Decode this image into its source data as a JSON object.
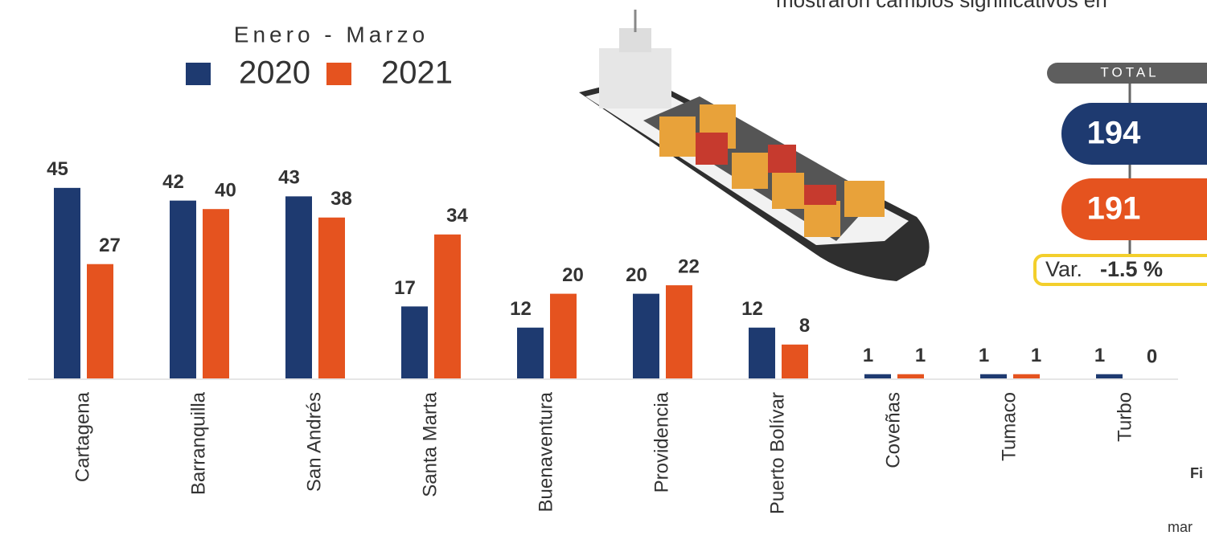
{
  "chart_data": {
    "type": "bar",
    "legend_title": "Enero - Marzo",
    "categories": [
      "Cartagena",
      "Barranquilla",
      "San Andrés",
      "Santa Marta",
      "Buenaventura",
      "Providencia",
      "Puerto Bolívar",
      "Coveñas",
      "Tumaco",
      "Turbo"
    ],
    "series": [
      {
        "name": "2020",
        "color": "#1e3a70",
        "values": [
          45,
          42,
          43,
          17,
          12,
          20,
          12,
          1,
          1,
          1
        ]
      },
      {
        "name": "2021",
        "color": "#e5531f",
        "values": [
          27,
          40,
          38,
          34,
          20,
          22,
          8,
          1,
          1,
          0
        ]
      }
    ]
  },
  "summary": {
    "title": "TOTAL",
    "total_2020": 194,
    "total_2021": 191,
    "variation_label": "Var.",
    "variation": "-1.5 %"
  },
  "fragments": {
    "top": "mostraron cambios significativos en",
    "side": [
      "Fi",
      "mar"
    ]
  }
}
